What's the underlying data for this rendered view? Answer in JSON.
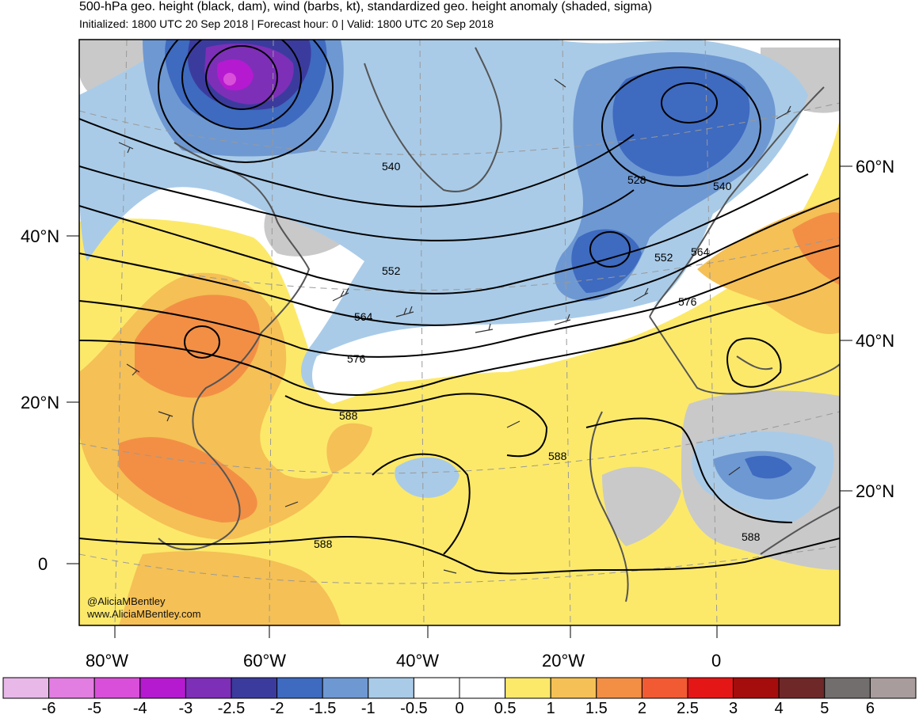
{
  "header": {
    "title": "500-hPa geo. height (black, dam), wind (barbs, kt), standardized geo. height anomaly (shaded, sigma)",
    "subtitle": "Initialized: 1800 UTC 20 Sep 2018 | Forecast hour: 0 | Valid: 1800 UTC 20 Sep 2018"
  },
  "credits": {
    "handle": "@AliciaMBentley",
    "website": "www.AliciaMBentley.com"
  },
  "axes": {
    "lat_left": [
      "40°N",
      "20°N",
      "0"
    ],
    "lat_right": [
      "60°N",
      "40°N",
      "20°N"
    ],
    "lon_bottom": [
      "80°W",
      "60°W",
      "40°W",
      "20°W",
      "0"
    ]
  },
  "contour_labels": [
    "540",
    "528",
    "540",
    "552",
    "552",
    "564",
    "564",
    "576",
    "576",
    "588",
    "588",
    "588",
    "588"
  ],
  "colorbar": {
    "labels": [
      "-6",
      "-5",
      "-4",
      "-3",
      "-2.5",
      "-2",
      "-1.5",
      "-1",
      "-0.5",
      "0",
      "0.5",
      "1",
      "1.5",
      "2",
      "2.5",
      "3",
      "4",
      "5",
      "6"
    ],
    "colors": [
      "#e8b8e8",
      "#e27de2",
      "#d94fd9",
      "#b51ad0",
      "#7d2fb8",
      "#3b3b9e",
      "#3e6ac0",
      "#6e98d2",
      "#a9cbe8",
      "#ffffff",
      "#ffffff",
      "#fce96a",
      "#f5c055",
      "#f28f45",
      "#f15a32",
      "#e51616",
      "#a50d0d",
      "#6e2828",
      "#736e6e",
      "#a89c9c"
    ]
  },
  "colors": {
    "land_gray": "#c9c9c9",
    "coast": "#555555",
    "contour": "#000000",
    "graticule": "#999999"
  }
}
